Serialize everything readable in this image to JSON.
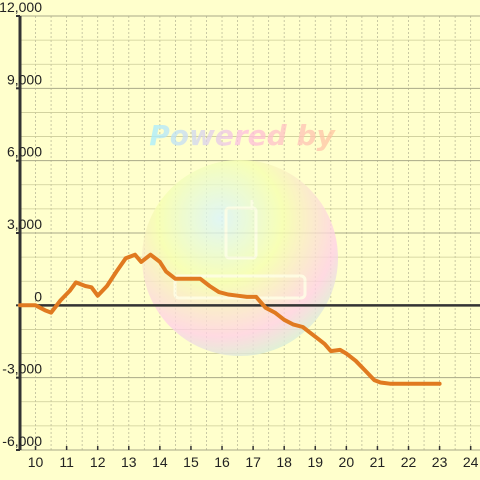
{
  "chart_data": {
    "type": "line",
    "title": "",
    "xlabel": "",
    "ylabel": "",
    "xlim": [
      9.5,
      24.3
    ],
    "ylim": [
      -6000,
      12000
    ],
    "x_ticks": [
      10,
      11,
      12,
      13,
      14,
      15,
      16,
      17,
      18,
      19,
      20,
      21,
      22,
      23,
      24
    ],
    "x_tick_labels": [
      "10",
      "11",
      "12",
      "13",
      "14",
      "15",
      "16",
      "17",
      "18",
      "19",
      "20",
      "21",
      "22",
      "23",
      "24"
    ],
    "y_ticks": [
      -6000,
      -3000,
      0,
      3000,
      6000,
      9000,
      12000
    ],
    "y_tick_labels": [
      "-6,000",
      "-3,000",
      "0",
      "3,000",
      "6,000",
      "9,000",
      "12,000"
    ],
    "grid": true,
    "legend": "none",
    "series": [
      {
        "color": "#e07a20",
        "x": [
          9.5,
          10.0,
          10.3,
          10.5,
          10.8,
          11.1,
          11.3,
          11.6,
          11.8,
          12.0,
          12.3,
          12.6,
          12.9,
          13.2,
          13.4,
          13.7,
          14.0,
          14.2,
          14.5,
          14.8,
          15.1,
          15.3,
          15.6,
          15.9,
          16.2,
          16.5,
          16.8,
          17.1,
          17.4,
          17.7,
          18.0,
          18.3,
          18.6,
          18.8,
          19.1,
          19.3,
          19.5,
          19.8,
          20.0,
          20.3,
          20.6,
          20.9,
          21.1,
          21.4,
          21.8,
          22.5,
          23.0
        ],
        "y": [
          0,
          0,
          -200,
          -300,
          200,
          600,
          950,
          800,
          750,
          400,
          800,
          1400,
          1950,
          2100,
          1800,
          2100,
          1800,
          1400,
          1100,
          1100,
          1100,
          1100,
          800,
          550,
          450,
          400,
          350,
          350,
          -100,
          -300,
          -600,
          -800,
          -900,
          -1100,
          -1400,
          -1600,
          -1900,
          -1850,
          -2000,
          -2300,
          -2700,
          -3100,
          -3200,
          -3250,
          -3250,
          -3250,
          -3250
        ]
      }
    ]
  },
  "watermark": {
    "powered_by": "Powered by"
  }
}
